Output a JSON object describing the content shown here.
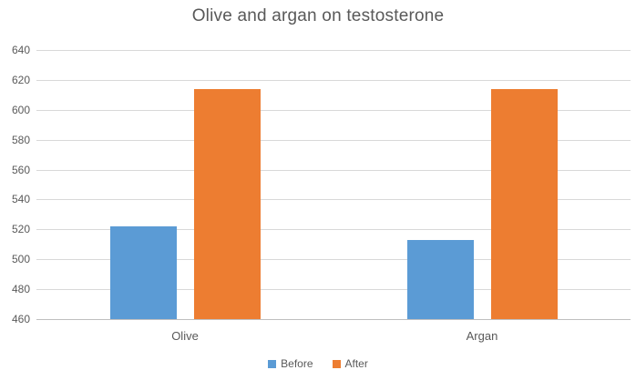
{
  "chart_data": {
    "type": "bar",
    "title": "Olive and argan on testosterone",
    "categories": [
      "Olive",
      "Argan"
    ],
    "series": [
      {
        "name": "Before",
        "color": "#5B9BD5",
        "values": [
          522,
          513
        ]
      },
      {
        "name": "After",
        "color": "#ED7D31",
        "values": [
          614,
          614
        ]
      }
    ],
    "xlabel": "",
    "ylabel": "",
    "ylim": [
      460,
      640
    ],
    "yticks": [
      460,
      480,
      500,
      520,
      540,
      560,
      580,
      600,
      620,
      640
    ],
    "grid": true,
    "legend_position": "bottom"
  },
  "style": {
    "text_color": "#595959",
    "gridline_color": "#D9D9D9",
    "axis_line_color": "#BFBFBF",
    "background": "#FFFFFF"
  },
  "legend": {
    "items": [
      {
        "label": "Before",
        "color": "#5B9BD5"
      },
      {
        "label": "After",
        "color": "#ED7D31"
      }
    ]
  }
}
